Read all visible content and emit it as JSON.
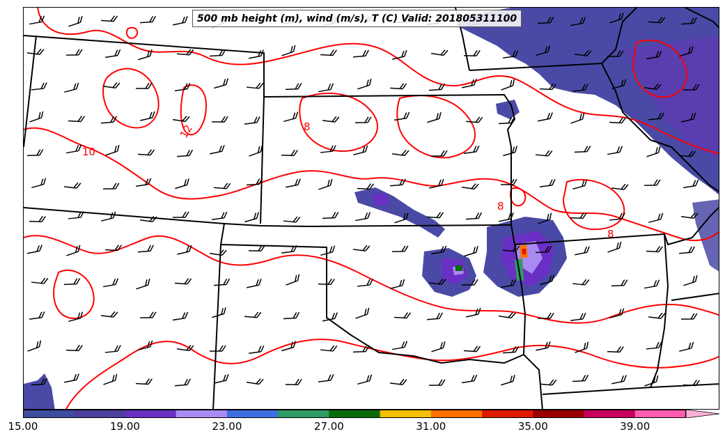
{
  "title": "500 mb height (m), wind (m/s), T (C) Valid: 201805311100",
  "contour_labels": [
    "12",
    "10",
    "8",
    "8",
    "8"
  ],
  "colorbar": {
    "colors": [
      "#3f4da0",
      "#4b3f9e",
      "#6a2fc4",
      "#a98af0",
      "#3d6fe0",
      "#2e9a66",
      "#0a6b0a",
      "#f1c000",
      "#ff6e00",
      "#e01800",
      "#9b0000",
      "#c8005e",
      "#ff5cb0",
      "#ffb0d8"
    ],
    "tick_labels": [
      "15.00",
      "19.00",
      "23.00",
      "27.00",
      "31.00",
      "35.00",
      "39.00"
    ],
    "tick_values": [
      15,
      19,
      23,
      27,
      31,
      35,
      39
    ],
    "range": [
      15,
      42.5
    ],
    "extend": "max"
  },
  "legend_colors": {
    "contour_temperature": "#ff0000",
    "state_borders": "#000000",
    "wind_barbs": "#000000"
  }
}
